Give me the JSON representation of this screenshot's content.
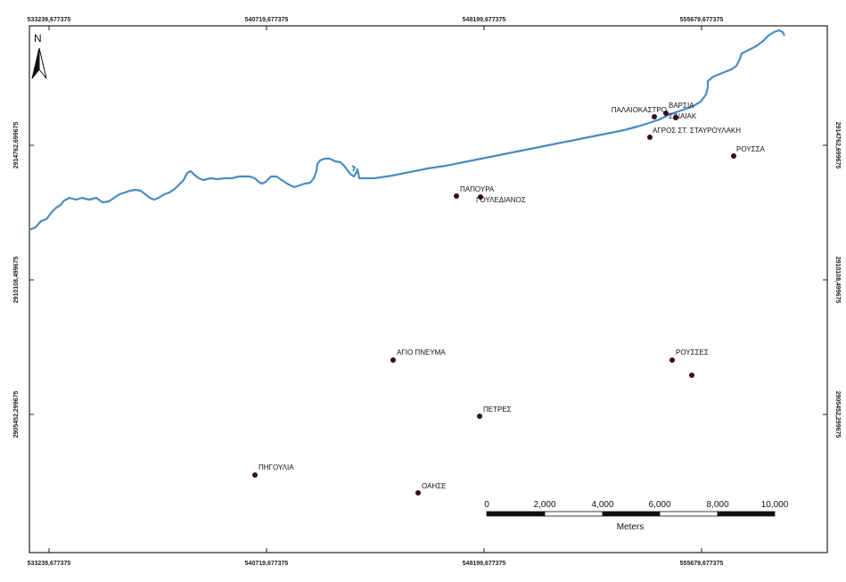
{
  "map": {
    "north_letter": "N",
    "x_ticks": [
      "533239,677375",
      "540719,677375",
      "548199,677375",
      "555679,677375"
    ],
    "y_ticks": [
      "2914762,699675",
      "2910108,499675",
      "2905452,299675"
    ],
    "places": [
      {
        "name": "ΠΑΛΑΙΟΚΑΣΤΡΟ",
        "anchor": "end"
      },
      {
        "name": "ΒΑΡΣΙΑ",
        "anchor": "start"
      },
      {
        "name": "ΣΙΝΑΙΑΚ",
        "anchor": "start"
      },
      {
        "name": "ΑΓΡΟΣ ΣΤ. ΣΤΑΥΡΟΥΛΑΚΗ",
        "anchor": "start"
      },
      {
        "name": "ΡΟΥΣΣΑ",
        "anchor": "start"
      },
      {
        "name": "ΠΑΠΟΥΡΑ",
        "anchor": "start"
      },
      {
        "name": "ΓΟΥΛΕΔΙΑΝΟΣ",
        "anchor": "start"
      },
      {
        "name": "ΑΓΙΟ ΠΝΕΥΜΑ",
        "anchor": "start"
      },
      {
        "name": "ΡΟΥΣΣΕΣ",
        "anchor": "start"
      },
      {
        "name": "",
        "anchor": "start"
      },
      {
        "name": "ΠΕΤΡΕΣ",
        "anchor": "start"
      },
      {
        "name": "ΠΗΓΟΥΛΙΑ",
        "anchor": "start"
      },
      {
        "name": "ΟΑΗΣΕ",
        "anchor": "start"
      }
    ],
    "scale_bar": {
      "labels": [
        "0",
        "2,000",
        "4,000",
        "6,000",
        "8,000",
        "10,000"
      ],
      "unit": "Meters"
    },
    "colors": {
      "coastline": "#4a8cc2",
      "point": "#3a0a2a",
      "frame": "#222222"
    }
  }
}
